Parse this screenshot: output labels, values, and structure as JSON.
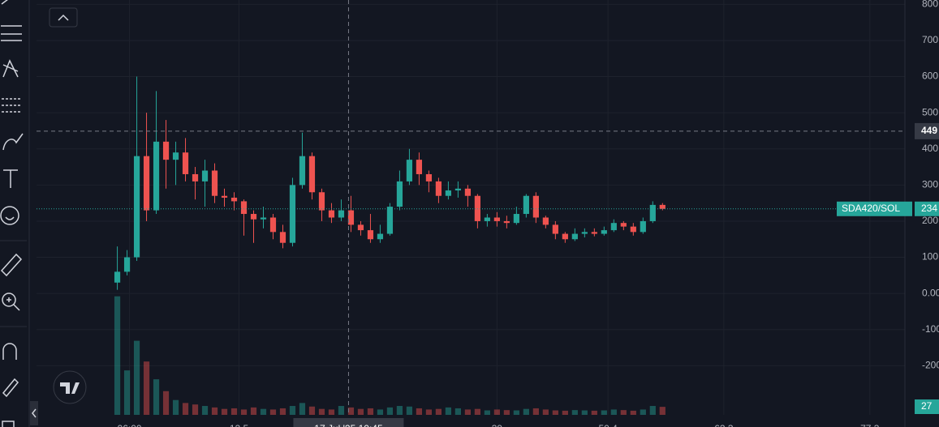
{
  "chart_data": {
    "type": "candlestick",
    "symbol": "SDA420/SOL",
    "x": [
      0,
      1,
      2,
      3,
      4,
      5,
      6,
      7,
      8,
      9,
      10,
      11,
      12,
      13,
      14,
      15,
      16,
      17,
      18,
      19,
      20,
      21,
      22,
      23,
      24,
      25,
      26,
      27,
      28,
      29,
      30,
      31,
      32,
      33,
      34,
      35,
      36,
      37,
      38,
      39,
      40,
      41,
      42,
      43,
      44,
      45,
      46,
      47,
      48,
      49,
      50,
      51,
      52,
      53,
      54,
      55,
      56
    ],
    "open": [
      30,
      60,
      100,
      380,
      230,
      420,
      370,
      390,
      330,
      310,
      340,
      270,
      265,
      255,
      220,
      205,
      210,
      170,
      140,
      300,
      380,
      280,
      230,
      210,
      230,
      190,
      175,
      150,
      165,
      240,
      310,
      370,
      330,
      310,
      270,
      285,
      290,
      270,
      200,
      210,
      200,
      195,
      220,
      270,
      210,
      190,
      165,
      150,
      165,
      170,
      165,
      175,
      195,
      185,
      170,
      200,
      245
    ],
    "high": [
      130,
      120,
      600,
      500,
      560,
      480,
      420,
      430,
      350,
      370,
      360,
      290,
      280,
      260,
      230,
      240,
      220,
      190,
      320,
      445,
      390,
      290,
      250,
      260,
      270,
      200,
      220,
      190,
      250,
      340,
      400,
      390,
      340,
      320,
      310,
      310,
      300,
      275,
      220,
      225,
      215,
      240,
      275,
      280,
      215,
      200,
      170,
      180,
      180,
      180,
      185,
      205,
      200,
      195,
      210,
      255,
      250
    ],
    "low": [
      10,
      50,
      90,
      200,
      220,
      290,
      300,
      310,
      260,
      240,
      250,
      240,
      230,
      160,
      140,
      180,
      150,
      125,
      130,
      290,
      260,
      200,
      195,
      200,
      170,
      160,
      140,
      140,
      160,
      230,
      300,
      300,
      280,
      250,
      260,
      265,
      240,
      180,
      185,
      185,
      180,
      190,
      210,
      195,
      180,
      150,
      140,
      145,
      155,
      158,
      160,
      170,
      175,
      160,
      165,
      195,
      230
    ],
    "close": [
      60,
      100,
      380,
      230,
      420,
      370,
      390,
      330,
      310,
      340,
      270,
      265,
      255,
      220,
      205,
      210,
      170,
      140,
      300,
      380,
      280,
      230,
      210,
      230,
      190,
      175,
      150,
      165,
      240,
      310,
      370,
      330,
      310,
      270,
      285,
      290,
      270,
      200,
      210,
      200,
      195,
      220,
      270,
      210,
      190,
      165,
      150,
      165,
      170,
      165,
      175,
      195,
      185,
      170,
      200,
      245,
      234
    ],
    "volume": [
      400,
      150,
      250,
      180,
      120,
      80,
      50,
      40,
      35,
      30,
      25,
      20,
      22,
      18,
      25,
      20,
      18,
      22,
      30,
      40,
      28,
      20,
      18,
      30,
      25,
      20,
      22,
      18,
      25,
      30,
      28,
      22,
      18,
      20,
      25,
      22,
      18,
      20,
      15,
      18,
      16,
      15,
      20,
      22,
      18,
      15,
      14,
      16,
      15,
      14,
      15,
      18,
      16,
      14,
      18,
      30,
      27
    ],
    "volume_ylim": [
      0,
      1400
    ],
    "up_color": "#26a69a",
    "down_color": "#ef5350",
    "xlim": [
      -8.3,
      80.9
    ],
    "ylim": [
      -336,
      812
    ],
    "yticks": [
      800,
      700,
      600,
      500,
      400,
      300,
      200,
      100,
      {
        "value": 0,
        "label": "0.00"
      },
      -100,
      -200
    ],
    "xticks": [
      {
        "value": 1.25,
        "label": "06:00"
      },
      12.5,
      39,
      50.4,
      62.3,
      77.3
    ],
    "xtick_labels_override": null,
    "crosshair": {
      "x": 23.75,
      "x_label": "17 Jul '25 10:45",
      "y": 449
    },
    "last_price": 234,
    "grid": true
  }
}
